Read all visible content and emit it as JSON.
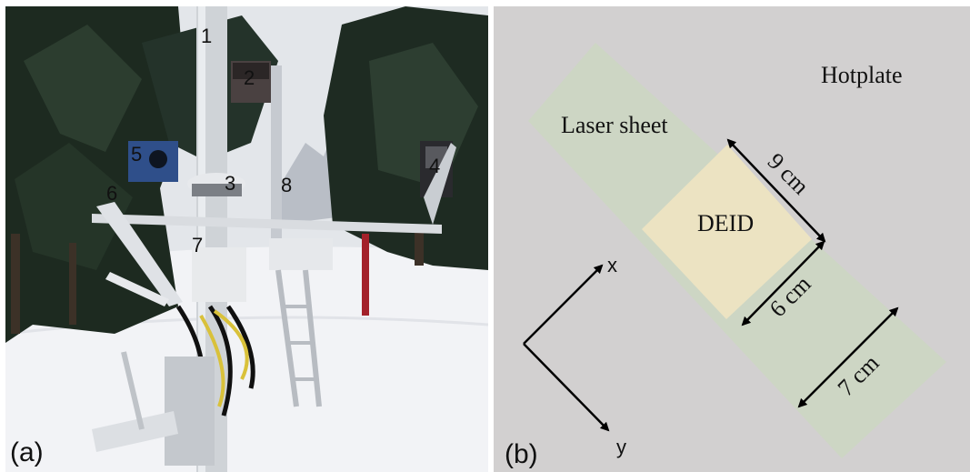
{
  "photo": {
    "panel_label": "(a)",
    "callouts": [
      "1",
      "2",
      "3",
      "4",
      "5",
      "6",
      "7",
      "8"
    ]
  },
  "diagram": {
    "panel_label": "(b)",
    "hotplate_label": "Hotplate",
    "laser_sheet_label": "Laser sheet",
    "deid_label": "DEID",
    "dim_9": "9 cm",
    "dim_6": "6 cm",
    "dim_7": "7 cm",
    "axis_x": "x",
    "axis_y": "y"
  },
  "colors": {
    "hotplate": "#d2d0d0",
    "laser_sheet": "#cdd6c4",
    "deid": "#ece3c2",
    "snow": "#f2f3f6"
  }
}
